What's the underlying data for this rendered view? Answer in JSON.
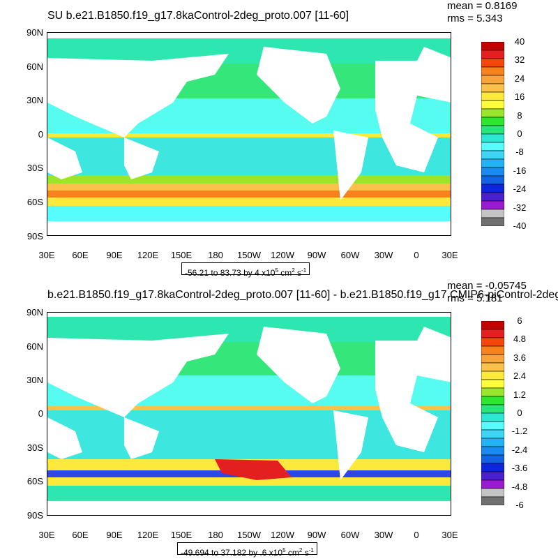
{
  "panels": [
    {
      "title": "SU b.e21.B1850.f19_g17.8kaControl-2deg_proto.007 [11-60]",
      "mean": "mean = 0.8169",
      "rms": "rms = 5.343",
      "range_main": "-56.21 to 83.73 by 4 x10",
      "range_exp": "5",
      "range_units_a": " cm",
      "range_units_b": " s",
      "colorbar_labels": [
        "40",
        "32",
        "24",
        "16",
        "8",
        "0",
        "-8",
        "-16",
        "-24",
        "-32",
        "-40"
      ],
      "colorbar_colors": [
        "#c20000",
        "#e41f1f",
        "#f5470d",
        "#f7811b",
        "#f9a43a",
        "#fbc14b",
        "#fde93b",
        "#fefe3e",
        "#9be62a",
        "#2ee62e",
        "#26e67a",
        "#2ee6d2",
        "#57fcfc",
        "#3fd4f5",
        "#23b3f3",
        "#178cee",
        "#1262e2",
        "#0b26db",
        "#4a1fcf",
        "#9a1ad2",
        "#c4c4c4",
        "#707070"
      ]
    },
    {
      "title": "b.e21.B1850.f19_g17.8kaControl-2deg_proto.007 [11-60] - b.e21.B1850.f19_g17.CMIP6-piControl-2deg",
      "mean": "mean = -0.05745",
      "rms": "rms = 5.181",
      "range_main": "-49.694 to 37.182 by .6 x10",
      "range_exp": "5",
      "range_units_a": " cm",
      "range_units_b": " s",
      "colorbar_labels": [
        "6",
        "4.8",
        "3.6",
        "2.4",
        "1.2",
        "0",
        "-1.2",
        "-2.4",
        "-3.6",
        "-4.8",
        "-6"
      ],
      "colorbar_colors": [
        "#c20000",
        "#e41f1f",
        "#f5470d",
        "#f7811b",
        "#f9a43a",
        "#fbc14b",
        "#fde93b",
        "#fefe3e",
        "#9be62a",
        "#2ee62e",
        "#26e67a",
        "#2ee6d2",
        "#57fcfc",
        "#3fd4f5",
        "#23b3f3",
        "#178cee",
        "#1262e2",
        "#0b26db",
        "#4a1fcf",
        "#9a1ad2",
        "#c4c4c4",
        "#707070"
      ]
    }
  ],
  "lat_labels": [
    "90N",
    "60N",
    "30N",
    "0",
    "30S",
    "60S",
    "90S"
  ],
  "lon_labels": [
    "30E",
    "60E",
    "90E",
    "120E",
    "150E",
    "180",
    "150W",
    "120W",
    "90W",
    "60W",
    "30W",
    "0",
    "30E"
  ]
}
